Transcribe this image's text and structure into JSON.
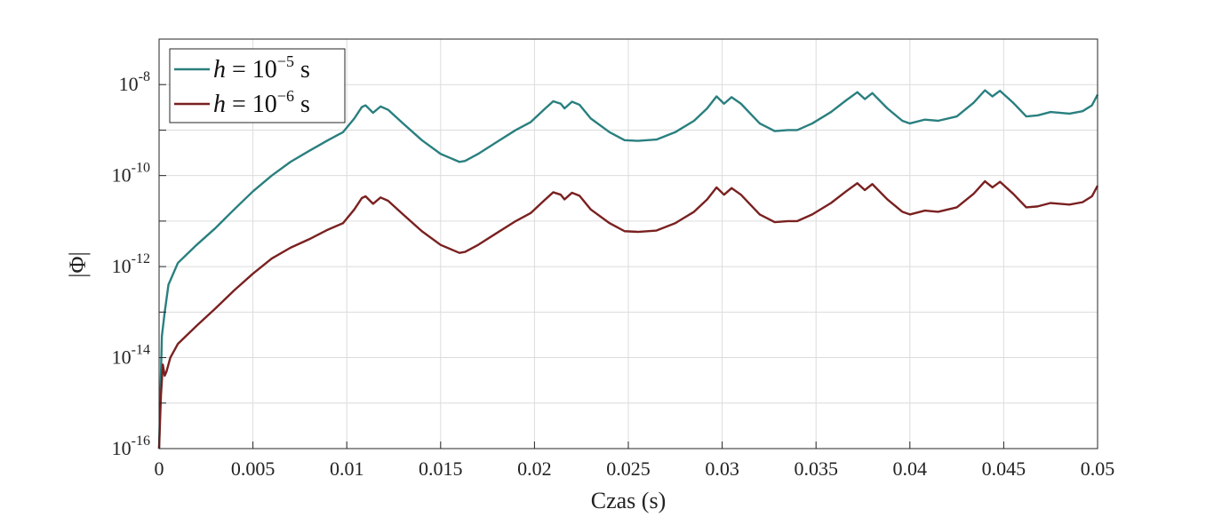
{
  "chart_data": {
    "type": "line",
    "xlabel": "Czas (s)",
    "ylabel": "|Φ|",
    "xlim": [
      0,
      0.05
    ],
    "ylim": [
      1e-16,
      1e-07
    ],
    "yscale": "log",
    "grid": true,
    "legend_position": "top-left",
    "x_ticks": [
      "0",
      "0.005",
      "0.01",
      "0.015",
      "0.02",
      "0.025",
      "0.03",
      "0.035",
      "0.04",
      "0.045",
      "0.05"
    ],
    "y_ticks": [
      {
        "base": "10",
        "exp": "-16"
      },
      {
        "base": "10",
        "exp": "-14"
      },
      {
        "base": "10",
        "exp": "-12"
      },
      {
        "base": "10",
        "exp": "-10"
      },
      {
        "base": "10",
        "exp": "-8"
      }
    ],
    "series": [
      {
        "name": "h = 10^-5 s",
        "legend": {
          "var": "h",
          "eq": " = 10",
          "exp": "−5",
          "unit": " s"
        },
        "color": "#2a7f7f",
        "points": [
          [
            0,
            1e-16
          ],
          [
            0.00015,
            3e-14
          ],
          [
            0.0003,
            1e-13
          ],
          [
            0.0005,
            4e-13
          ],
          [
            0.001,
            1.2e-12
          ],
          [
            0.002,
            3e-12
          ],
          [
            0.003,
            7e-12
          ],
          [
            0.004,
            1.8e-11
          ],
          [
            0.005,
            4.5e-11
          ],
          [
            0.006,
            1e-10
          ],
          [
            0.007,
            2e-10
          ],
          [
            0.008,
            3.5e-10
          ],
          [
            0.009,
            6e-10
          ],
          [
            0.0098,
            9e-10
          ],
          [
            0.0104,
            1.8e-09
          ],
          [
            0.0108,
            3.2e-09
          ],
          [
            0.011,
            3.5e-09
          ],
          [
            0.0114,
            2.4e-09
          ],
          [
            0.0118,
            3.3e-09
          ],
          [
            0.0122,
            2.8e-09
          ],
          [
            0.013,
            1.4e-09
          ],
          [
            0.014,
            6e-10
          ],
          [
            0.015,
            3e-10
          ],
          [
            0.016,
            2e-10
          ],
          [
            0.0163,
            2.1e-10
          ],
          [
            0.017,
            3e-10
          ],
          [
            0.018,
            5.5e-10
          ],
          [
            0.019,
            1e-09
          ],
          [
            0.0198,
            1.5e-09
          ],
          [
            0.0205,
            2.8e-09
          ],
          [
            0.021,
            4.3e-09
          ],
          [
            0.0214,
            3.8e-09
          ],
          [
            0.0216,
            3e-09
          ],
          [
            0.022,
            4.2e-09
          ],
          [
            0.0224,
            3.6e-09
          ],
          [
            0.023,
            1.8e-09
          ],
          [
            0.024,
            9e-10
          ],
          [
            0.0248,
            6e-10
          ],
          [
            0.0255,
            5.8e-10
          ],
          [
            0.0265,
            6.2e-10
          ],
          [
            0.0275,
            9e-10
          ],
          [
            0.0285,
            1.6e-09
          ],
          [
            0.0292,
            3e-09
          ],
          [
            0.0297,
            5.5e-09
          ],
          [
            0.0301,
            3.8e-09
          ],
          [
            0.0305,
            5.3e-09
          ],
          [
            0.031,
            3.8e-09
          ],
          [
            0.032,
            1.4e-09
          ],
          [
            0.0328,
            9.5e-10
          ],
          [
            0.0335,
            1e-09
          ],
          [
            0.034,
            1e-09
          ],
          [
            0.0348,
            1.4e-09
          ],
          [
            0.0358,
            2.5e-09
          ],
          [
            0.0366,
            4.5e-09
          ],
          [
            0.0372,
            6.8e-09
          ],
          [
            0.0376,
            4.8e-09
          ],
          [
            0.038,
            6.5e-09
          ],
          [
            0.0388,
            3e-09
          ],
          [
            0.0396,
            1.6e-09
          ],
          [
            0.04,
            1.4e-09
          ],
          [
            0.0408,
            1.7e-09
          ],
          [
            0.0415,
            1.6e-09
          ],
          [
            0.0425,
            2e-09
          ],
          [
            0.0434,
            4e-09
          ],
          [
            0.044,
            7.5e-09
          ],
          [
            0.0444,
            5.5e-09
          ],
          [
            0.0448,
            7.3e-09
          ],
          [
            0.0455,
            4e-09
          ],
          [
            0.0462,
            2e-09
          ],
          [
            0.0468,
            2.1e-09
          ],
          [
            0.0475,
            2.5e-09
          ],
          [
            0.0485,
            2.3e-09
          ],
          [
            0.0492,
            2.6e-09
          ],
          [
            0.0497,
            3.5e-09
          ],
          [
            0.05,
            6e-09
          ]
        ]
      },
      {
        "name": "h = 10^-6 s",
        "legend": {
          "var": "h",
          "eq": " = 10",
          "exp": "−6",
          "unit": " s"
        },
        "color": "#7a2020",
        "points": [
          [
            0,
            1e-16
          ],
          [
            0.0001,
            1.5e-15
          ],
          [
            0.0002,
            7e-15
          ],
          [
            0.0003,
            4e-15
          ],
          [
            0.0004,
            5e-15
          ],
          [
            0.0006,
            1e-14
          ],
          [
            0.001,
            2e-14
          ],
          [
            0.002,
            5e-14
          ],
          [
            0.003,
            1.2e-13
          ],
          [
            0.004,
            3e-13
          ],
          [
            0.005,
            7e-13
          ],
          [
            0.006,
            1.5e-12
          ],
          [
            0.007,
            2.6e-12
          ],
          [
            0.008,
            4e-12
          ],
          [
            0.009,
            6.5e-12
          ],
          [
            0.0098,
            9e-12
          ],
          [
            0.0104,
            1.8e-11
          ],
          [
            0.0108,
            3.2e-11
          ],
          [
            0.011,
            3.5e-11
          ],
          [
            0.0114,
            2.4e-11
          ],
          [
            0.0118,
            3.3e-11
          ],
          [
            0.0122,
            2.8e-11
          ],
          [
            0.013,
            1.4e-11
          ],
          [
            0.014,
            6e-12
          ],
          [
            0.015,
            3e-12
          ],
          [
            0.016,
            2e-12
          ],
          [
            0.0163,
            2.1e-12
          ],
          [
            0.017,
            3e-12
          ],
          [
            0.018,
            5.5e-12
          ],
          [
            0.019,
            1e-11
          ],
          [
            0.0198,
            1.5e-11
          ],
          [
            0.0205,
            2.8e-11
          ],
          [
            0.021,
            4.3e-11
          ],
          [
            0.0214,
            3.8e-11
          ],
          [
            0.0216,
            3e-11
          ],
          [
            0.022,
            4.2e-11
          ],
          [
            0.0224,
            3.6e-11
          ],
          [
            0.023,
            1.8e-11
          ],
          [
            0.024,
            9e-12
          ],
          [
            0.0248,
            6e-12
          ],
          [
            0.0255,
            5.8e-12
          ],
          [
            0.0265,
            6.2e-12
          ],
          [
            0.0275,
            9e-12
          ],
          [
            0.0285,
            1.6e-11
          ],
          [
            0.0292,
            3e-11
          ],
          [
            0.0297,
            5.5e-11
          ],
          [
            0.0301,
            3.8e-11
          ],
          [
            0.0305,
            5.3e-11
          ],
          [
            0.031,
            3.8e-11
          ],
          [
            0.032,
            1.4e-11
          ],
          [
            0.0328,
            9.5e-12
          ],
          [
            0.0335,
            1e-11
          ],
          [
            0.034,
            1e-11
          ],
          [
            0.0348,
            1.4e-11
          ],
          [
            0.0358,
            2.5e-11
          ],
          [
            0.0366,
            4.5e-11
          ],
          [
            0.0372,
            6.8e-11
          ],
          [
            0.0376,
            4.8e-11
          ],
          [
            0.038,
            6.5e-11
          ],
          [
            0.0388,
            3e-11
          ],
          [
            0.0396,
            1.6e-11
          ],
          [
            0.04,
            1.4e-11
          ],
          [
            0.0408,
            1.7e-11
          ],
          [
            0.0415,
            1.6e-11
          ],
          [
            0.0425,
            2e-11
          ],
          [
            0.0434,
            4e-11
          ],
          [
            0.044,
            7.5e-11
          ],
          [
            0.0444,
            5.5e-11
          ],
          [
            0.0448,
            7.3e-11
          ],
          [
            0.0455,
            4e-11
          ],
          [
            0.0462,
            2e-11
          ],
          [
            0.0468,
            2.1e-11
          ],
          [
            0.0475,
            2.5e-11
          ],
          [
            0.0485,
            2.3e-11
          ],
          [
            0.0492,
            2.6e-11
          ],
          [
            0.0497,
            3.5e-11
          ],
          [
            0.05,
            6e-11
          ]
        ]
      }
    ]
  }
}
